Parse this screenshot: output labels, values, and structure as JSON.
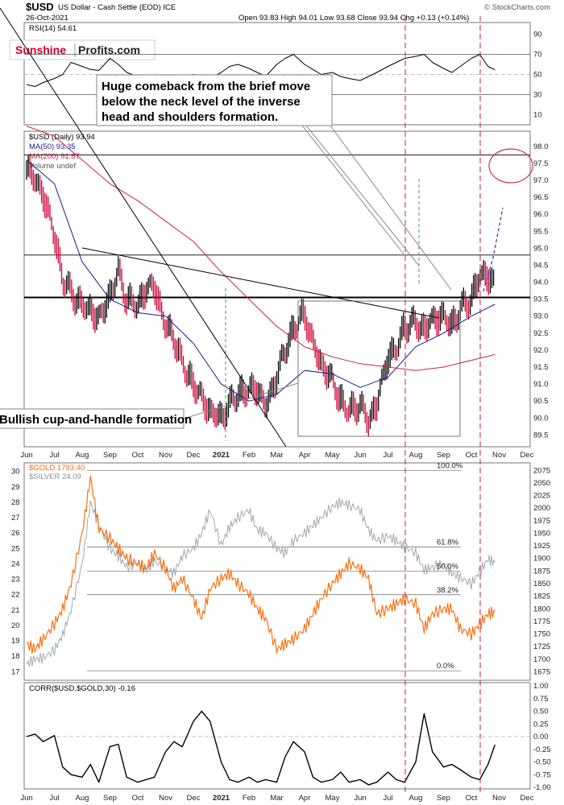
{
  "header": {
    "symbol": "$USD",
    "description": "US Dollar - Cash Settle (EOD) ICE",
    "date": "26-Oct-2021",
    "ohlc": "Open 93.83  High 94.01  Low 93.68  Close 93.94  Chg +0.13 (+0.14%)",
    "credit": "© StockCharts.com"
  },
  "logo": {
    "part1": "Sunshine",
    "part2": "Profits.com"
  },
  "annotations": {
    "top_lines": [
      "Huge comeback from the brief move",
      "below the neck level of the inverse",
      "head and shoulders formation."
    ],
    "bottom": "Bullish cup-and-handle formation"
  },
  "colors": {
    "usd_up": "#000000",
    "usd_down": "#cc0033",
    "ma50": "#1a1a8c",
    "ma200": "#cc2244",
    "gold": "#ff6600",
    "silver": "#a0a8b0",
    "vline": "#cc0033",
    "target_circle": "#cc3355",
    "projection": "#2a2acc"
  },
  "chart_data": [
    {
      "type": "line",
      "id": "rsi",
      "title": "RSI(14) 54.61",
      "y_ticks": [
        10,
        30,
        50,
        70,
        90
      ],
      "ylim": [
        0,
        100
      ],
      "reference_lines": [
        30,
        50,
        70
      ],
      "series": [
        {
          "name": "RSI(14)",
          "x_months": [
            0,
            0.3,
            0.6,
            1,
            1.3,
            1.6,
            2,
            2.3,
            2.6,
            3,
            3.3,
            3.6,
            4,
            4.3,
            4.6,
            5,
            5.3,
            5.6,
            6,
            6.3,
            6.6,
            7,
            7.3,
            7.6,
            8,
            8.3,
            8.6,
            9,
            9.3,
            9.6,
            10,
            10.3,
            10.6,
            11,
            11.3,
            11.6,
            12,
            12.3,
            12.6,
            13,
            13.3,
            13.6,
            14,
            14.3,
            14.6,
            15,
            15.3,
            15.6,
            16,
            16.3,
            16.6,
            16.85
          ],
          "values": [
            40,
            38,
            42,
            46,
            50,
            62,
            58,
            55,
            54,
            66,
            60,
            52,
            48,
            44,
            40,
            34,
            30,
            42,
            50,
            48,
            46,
            52,
            58,
            60,
            56,
            52,
            48,
            60,
            66,
            70,
            60,
            55,
            50,
            52,
            48,
            46,
            44,
            48,
            52,
            58,
            62,
            66,
            68,
            70,
            62,
            56,
            52,
            58,
            66,
            70,
            58,
            54.61
          ]
        }
      ]
    },
    {
      "type": "line",
      "id": "usd",
      "title": "$USD (Daily) 93.94",
      "legend": [
        "$USD (Daily) 93.94",
        "MA(50) 93.35",
        "MA(200) 91.87",
        "Volume undef"
      ],
      "y_ticks": [
        89.5,
        90.0,
        90.5,
        91.0,
        91.5,
        92.0,
        92.5,
        93.0,
        93.5,
        94.0,
        94.5,
        95.0,
        95.5,
        96.0,
        96.5,
        97.0,
        97.5,
        98.0
      ],
      "ylim": [
        89.2,
        98.4
      ],
      "horizontal_lines": [
        97.75,
        94.8,
        93.55
      ],
      "x_labels": [
        "Jun",
        "Jul",
        "Aug",
        "Sep",
        "Oct",
        "Nov",
        "Dec",
        "2021",
        "Feb",
        "Mar",
        "Apr",
        "May",
        "Jun",
        "Jul",
        "Aug",
        "Sep",
        "Oct",
        "Nov",
        "Dec"
      ],
      "series": [
        {
          "name": "$USD",
          "x_months": [
            0,
            0.3,
            0.6,
            1,
            1.3,
            1.6,
            2,
            2.3,
            2.6,
            3,
            3.3,
            3.6,
            4,
            4.3,
            4.6,
            5,
            5.3,
            5.6,
            6,
            6.3,
            6.6,
            7,
            7.3,
            7.6,
            8,
            8.3,
            8.6,
            9,
            9.3,
            9.6,
            10,
            10.3,
            10.6,
            11,
            11.3,
            11.6,
            12,
            12.3,
            12.6,
            13,
            13.3,
            13.6,
            14,
            14.3,
            14.6,
            15,
            15.3,
            15.6,
            16,
            16.3,
            16.6,
            16.85
          ],
          "values": [
            97.4,
            97.0,
            96.6,
            95.4,
            94.1,
            93.7,
            93.3,
            93.2,
            92.9,
            93.6,
            94.3,
            93.5,
            93.3,
            93.8,
            93.9,
            92.7,
            92.4,
            91.6,
            91.0,
            90.6,
            90.2,
            90.0,
            90.4,
            90.7,
            90.8,
            90.9,
            90.3,
            91.2,
            92.0,
            92.6,
            93.1,
            92.2,
            91.6,
            91.1,
            90.5,
            90.2,
            90.4,
            89.9,
            90.4,
            91.8,
            92.0,
            92.7,
            92.8,
            92.6,
            92.9,
            93.0,
            92.7,
            93.2,
            93.5,
            94.2,
            94.2,
            93.94
          ]
        },
        {
          "name": "MA(50)",
          "x_months": [
            0,
            1,
            2,
            3,
            4,
            5,
            6,
            7,
            8,
            9,
            10,
            11,
            12,
            13,
            14,
            15,
            16,
            16.85
          ],
          "values": [
            97.6,
            96.9,
            94.6,
            93.5,
            93.1,
            93.0,
            92.2,
            91.0,
            90.5,
            90.7,
            91.4,
            91.3,
            90.9,
            91.2,
            92.1,
            92.5,
            93.0,
            93.35
          ]
        },
        {
          "name": "MA(200)",
          "x_months": [
            0,
            1,
            2,
            3,
            4,
            5,
            6,
            7,
            8,
            9,
            10,
            11,
            12,
            13,
            14,
            15,
            16,
            16.85
          ],
          "values": [
            98.6,
            98.3,
            97.6,
            96.9,
            96.4,
            95.8,
            95.2,
            94.3,
            93.5,
            92.7,
            92.1,
            91.8,
            91.6,
            91.5,
            91.4,
            91.5,
            91.7,
            91.87
          ]
        }
      ]
    },
    {
      "type": "line",
      "id": "gold_silver",
      "title": "$GOLD 1793.40",
      "legend": [
        "$GOLD 1793.40",
        "$SILVER 24.09"
      ],
      "y_ticks_left": [
        17,
        18,
        19,
        20,
        21,
        22,
        23,
        24,
        25,
        26,
        27,
        28,
        29,
        30
      ],
      "y_ticks_right": [
        1675,
        1700,
        1725,
        1750,
        1775,
        1800,
        1825,
        1850,
        1875,
        1900,
        1925,
        1950,
        1975,
        2000,
        2025,
        2050,
        2075
      ],
      "fib_levels": [
        {
          "label": "100.0%",
          "value": 2075
        },
        {
          "label": "61.8%",
          "value": 1923
        },
        {
          "label": "50.0%",
          "value": 1875
        },
        {
          "label": "38.2%",
          "value": 1828
        },
        {
          "label": "0.0%",
          "value": 1677
        }
      ],
      "series": [
        {
          "name": "$GOLD",
          "axis": "right",
          "x_months": [
            0,
            0.3,
            0.6,
            1,
            1.3,
            1.6,
            2,
            2.3,
            2.6,
            3,
            3.3,
            3.6,
            4,
            4.3,
            4.6,
            5,
            5.3,
            5.6,
            6,
            6.3,
            6.6,
            7,
            7.3,
            7.6,
            8,
            8.3,
            8.6,
            9,
            9.3,
            9.6,
            10,
            10.3,
            10.6,
            11,
            11.3,
            11.6,
            12,
            12.3,
            12.6,
            13,
            13.3,
            13.6,
            14,
            14.3,
            14.6,
            15,
            15.3,
            15.6,
            16,
            16.3,
            16.6,
            16.85
          ],
          "values": [
            1730,
            1720,
            1740,
            1770,
            1800,
            1850,
            1950,
            2060,
            1960,
            1940,
            1920,
            1900,
            1890,
            1880,
            1910,
            1880,
            1840,
            1860,
            1820,
            1780,
            1840,
            1860,
            1870,
            1850,
            1830,
            1800,
            1780,
            1720,
            1730,
            1740,
            1760,
            1790,
            1820,
            1850,
            1870,
            1890,
            1880,
            1860,
            1790,
            1800,
            1810,
            1820,
            1810,
            1760,
            1790,
            1800,
            1800,
            1760,
            1750,
            1770,
            1790,
            1793.4
          ]
        },
        {
          "name": "$SILVER",
          "axis": "left",
          "x_months": [
            0,
            0.3,
            0.6,
            1,
            1.3,
            1.6,
            2,
            2.3,
            2.6,
            3,
            3.3,
            3.6,
            4,
            4.3,
            4.6,
            5,
            5.3,
            5.6,
            6,
            6.3,
            6.6,
            7,
            7.3,
            7.6,
            8,
            8.3,
            8.6,
            9,
            9.3,
            9.6,
            10,
            10.3,
            10.6,
            11,
            11.3,
            11.6,
            12,
            12.3,
            12.6,
            13,
            13.3,
            13.6,
            14,
            14.3,
            14.6,
            15,
            15.3,
            15.6,
            16,
            16.3,
            16.6,
            16.85
          ],
          "values": [
            17.5,
            17.8,
            17.9,
            18.4,
            19.4,
            21.0,
            24.0,
            28.0,
            26.5,
            25.0,
            24.5,
            23.8,
            24.0,
            23.5,
            24.2,
            23.7,
            23.4,
            24.5,
            25.0,
            26.0,
            27.5,
            25.2,
            26.4,
            27.0,
            27.5,
            26.2,
            26.0,
            25.0,
            24.7,
            25.5,
            26.0,
            26.5,
            27.0,
            27.7,
            28.0,
            27.8,
            27.5,
            26.2,
            25.5,
            25.8,
            25.5,
            25.1,
            24.7,
            23.6,
            23.8,
            24.0,
            23.4,
            23.1,
            22.7,
            23.5,
            24.3,
            24.09
          ]
        }
      ]
    },
    {
      "type": "line",
      "id": "corr",
      "title": "CORR($USD,$GOLD,30) -0.16",
      "y_ticks": [
        -1.0,
        -0.75,
        -0.5,
        -0.25,
        0.0,
        0.25,
        0.5,
        0.75,
        1.0
      ],
      "ylim": [
        -1.0,
        1.0
      ],
      "reference_lines": [
        0.0
      ],
      "series": [
        {
          "name": "CORR($USD,$GOLD,30)",
          "x_months": [
            0,
            0.3,
            0.6,
            1,
            1.3,
            1.6,
            2,
            2.3,
            2.6,
            3,
            3.3,
            3.6,
            4,
            4.3,
            4.6,
            5,
            5.3,
            5.6,
            6,
            6.3,
            6.6,
            7,
            7.3,
            7.6,
            8,
            8.3,
            8.6,
            9,
            9.3,
            9.6,
            10,
            10.3,
            10.6,
            11,
            11.3,
            11.6,
            12,
            12.3,
            12.6,
            13,
            13.3,
            13.6,
            14,
            14.3,
            14.6,
            15,
            15.3,
            15.6,
            16,
            16.3,
            16.6,
            16.85
          ],
          "values": [
            0.0,
            0.05,
            -0.1,
            0.02,
            -0.6,
            -0.75,
            -0.8,
            -0.55,
            -0.9,
            -0.2,
            -0.15,
            -0.8,
            -0.9,
            -0.85,
            -0.8,
            -0.3,
            -0.1,
            -0.2,
            0.3,
            0.5,
            0.3,
            -0.5,
            -0.85,
            -0.9,
            -0.8,
            -0.9,
            -0.85,
            -0.9,
            -0.4,
            -0.1,
            -0.3,
            -0.8,
            -0.9,
            -0.85,
            -0.7,
            -0.9,
            -0.85,
            -0.95,
            -0.9,
            -0.7,
            -0.85,
            -0.9,
            -0.5,
            0.45,
            -0.3,
            -0.6,
            -0.55,
            -0.65,
            -0.8,
            -0.85,
            -0.55,
            -0.16
          ]
        }
      ]
    }
  ],
  "x_axis_labels": [
    "Jun",
    "Jul",
    "Aug",
    "Sep",
    "Oct",
    "Nov",
    "Dec",
    "2021",
    "Feb",
    "Mar",
    "Apr",
    "May",
    "Jun",
    "Jul",
    "Aug",
    "Sep",
    "Oct",
    "Nov",
    "Dec"
  ]
}
